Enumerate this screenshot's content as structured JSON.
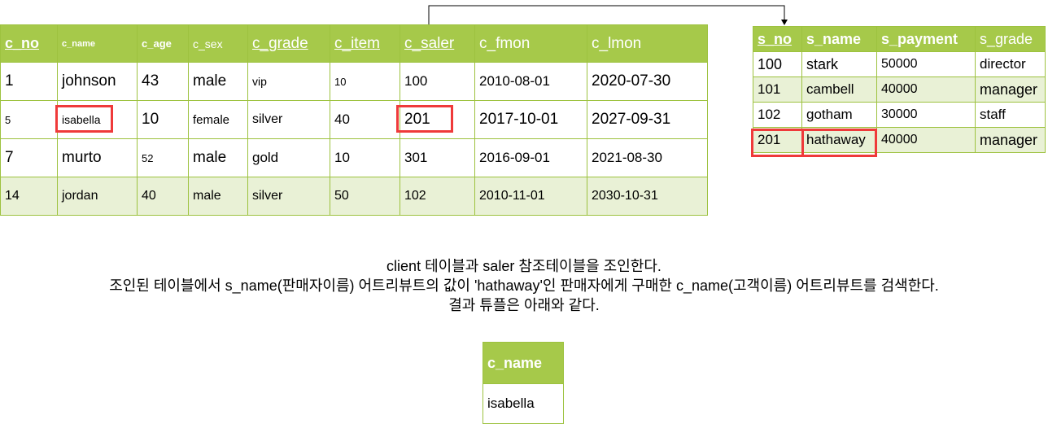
{
  "client_table": {
    "headers": [
      "c_no",
      "c_name",
      "c_age",
      "c_sex",
      "c_grade",
      "c_item",
      "c_saler",
      "c_fmon",
      "c_lmon"
    ],
    "rows": [
      [
        "1",
        "johnson",
        "43",
        "male",
        "vip",
        "10",
        "100",
        "2010-08-01",
        "2020-07-30"
      ],
      [
        "5",
        "isabella",
        "10",
        "female",
        "silver",
        "40",
        "201",
        "2017-10-01",
        "2027-09-31"
      ],
      [
        "7",
        "murto",
        "52",
        "male",
        "gold",
        "10",
        "301",
        "2016-09-01",
        "2021-08-30"
      ],
      [
        "14",
        "jordan",
        "40",
        "male",
        "silver",
        "50",
        "102",
        "2010-11-01",
        "2030-10-31"
      ]
    ]
  },
  "saler_table": {
    "headers": [
      "s_no",
      "s_name",
      "s_payment",
      "s_grade"
    ],
    "rows": [
      [
        "100",
        "stark",
        "50000",
        "director"
      ],
      [
        "101",
        "cambell",
        "40000",
        "manager"
      ],
      [
        "102",
        "gotham",
        "30000",
        "staff"
      ],
      [
        "201",
        "hathaway",
        "40000",
        "manager"
      ]
    ]
  },
  "description": {
    "line1": "client 테이블과 saler 참조테이블을 조인한다.",
    "line2": "조인된 테이블에서 s_name(판매자이름) 어트리뷰트의 값이 'hathaway'인 판매자에게 구매한 c_name(고객이름) 어트리뷰트를 검색한다.",
    "line3": "결과 튜플은 아래와 같다."
  },
  "result_table": {
    "header": "c_name",
    "value": "isabella"
  },
  "colors": {
    "header_bg": "#a6c94a",
    "border": "#9dc23f",
    "shaded_row": "#e9f1d6",
    "highlight": "#ef3a3a"
  }
}
